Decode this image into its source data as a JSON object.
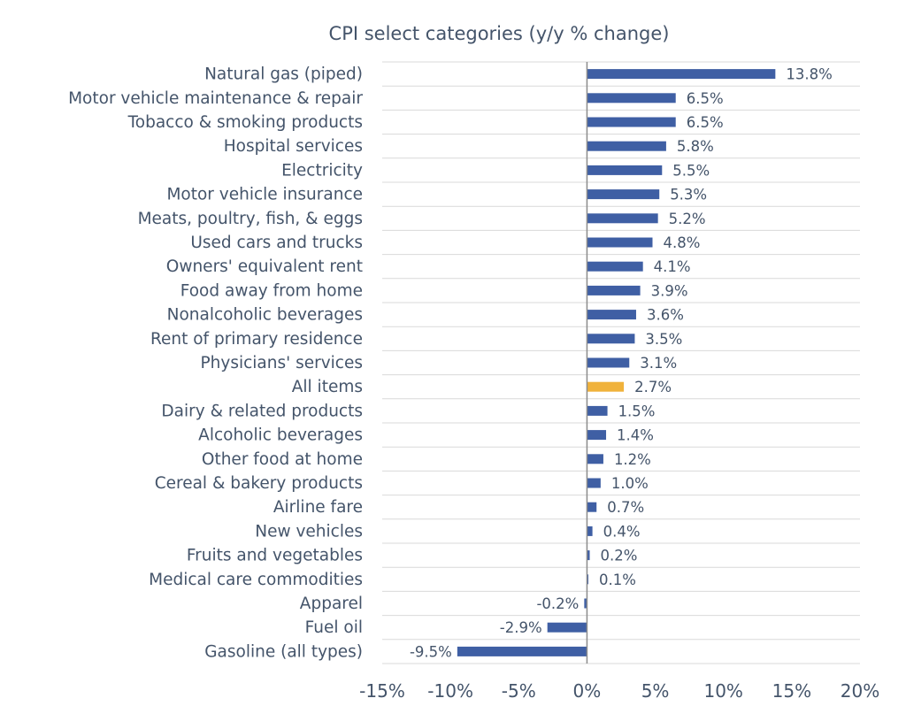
{
  "chart_data": {
    "type": "bar",
    "orientation": "horizontal",
    "title": "CPI select categories (y/y % change)",
    "xlabel": "",
    "ylabel": "",
    "xlim": [
      -15,
      20
    ],
    "xticks": [
      -15,
      -10,
      -5,
      0,
      5,
      10,
      15,
      20
    ],
    "xtick_labels": [
      "-15%",
      "-10%",
      "-5%",
      "0%",
      "5%",
      "10%",
      "15%",
      "20%"
    ],
    "grid": "horizontal",
    "categories": [
      "Natural gas (piped)",
      "Motor vehicle maintenance & repair",
      "Tobacco & smoking products",
      "Hospital services",
      "Electricity",
      "Motor vehicle insurance",
      "Meats, poultry, fish, & eggs",
      "Used cars and trucks",
      "Owners' equivalent rent",
      "Food away from home",
      "Nonalcoholic beverages",
      "Rent of primary residence",
      "Physicians' services",
      "All items",
      "Dairy & related products",
      "Alcoholic beverages",
      "Other food at home",
      "Cereal & bakery products",
      "Airline fare",
      "New vehicles",
      "Fruits and vegetables",
      "Medical care commodities",
      "Apparel",
      "Fuel oil",
      "Gasoline (all types)"
    ],
    "values": [
      13.8,
      6.5,
      6.5,
      5.8,
      5.5,
      5.3,
      5.2,
      4.8,
      4.1,
      3.9,
      3.6,
      3.5,
      3.1,
      2.7,
      1.5,
      1.4,
      1.2,
      1.0,
      0.7,
      0.4,
      0.2,
      0.1,
      -0.2,
      -2.9,
      -9.5
    ],
    "data_labels": [
      "13.8%",
      "6.5%",
      "6.5%",
      "5.8%",
      "5.5%",
      "5.3%",
      "5.2%",
      "4.8%",
      "4.1%",
      "3.9%",
      "3.6%",
      "3.5%",
      "3.1%",
      "2.7%",
      "1.5%",
      "1.4%",
      "1.2%",
      "1.0%",
      "0.7%",
      "0.4%",
      "0.2%",
      "0.1%",
      "-0.2%",
      "-2.9%",
      "-9.5%"
    ],
    "highlight_category": "All items",
    "colors": {
      "bar": "#3f5fa4",
      "highlight": "#f0b23b",
      "grid": "#d9d9d9",
      "axis": "#8c8c8c",
      "text": "#44546a"
    }
  }
}
